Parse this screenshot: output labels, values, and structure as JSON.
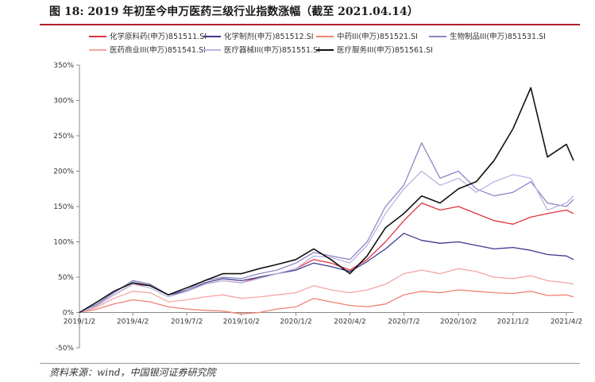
{
  "figure": {
    "title": "图 18:  2019 年初至今申万医药三级行业指数涨幅（截至 2021.04.14）",
    "source": "资料来源：wind，中国银河证券研究院"
  },
  "chart_data": {
    "type": "line",
    "title": "",
    "xlabel": "",
    "ylabel": "",
    "ylim": [
      -50,
      350
    ],
    "y_ticks": [
      "-50%",
      "0%",
      "50%",
      "100%",
      "150%",
      "200%",
      "250%",
      "300%",
      "350%"
    ],
    "x_range": [
      "2019-01-02",
      "2021-04-14"
    ],
    "x_ticks": [
      "2019/1/2",
      "2019/4/2",
      "2019/7/2",
      "2019/10/2",
      "2020/1/2",
      "2020/4/2",
      "2020/7/2",
      "2020/10/2",
      "2021/1/2",
      "2021/4/2"
    ],
    "grid": false,
    "legend_position": "top",
    "series": [
      {
        "name": "化学原料药(申万)851511.SI",
        "color": "#e0333c",
        "points": [
          [
            "2019-01-02",
            0
          ],
          [
            "2019-02-01",
            10
          ],
          [
            "2019-03-01",
            25
          ],
          [
            "2019-04-02",
            40
          ],
          [
            "2019-05-01",
            38
          ],
          [
            "2019-06-01",
            25
          ],
          [
            "2019-07-02",
            30
          ],
          [
            "2019-08-01",
            40
          ],
          [
            "2019-09-01",
            45
          ],
          [
            "2019-10-02",
            42
          ],
          [
            "2019-11-01",
            50
          ],
          [
            "2019-12-01",
            55
          ],
          [
            "2020-01-02",
            62
          ],
          [
            "2020-02-01",
            75
          ],
          [
            "2020-03-01",
            70
          ],
          [
            "2020-04-02",
            60
          ],
          [
            "2020-05-01",
            75
          ],
          [
            "2020-06-01",
            100
          ],
          [
            "2020-07-02",
            130
          ],
          [
            "2020-08-01",
            155
          ],
          [
            "2020-09-01",
            145
          ],
          [
            "2020-10-02",
            150
          ],
          [
            "2020-11-01",
            140
          ],
          [
            "2020-12-01",
            130
          ],
          [
            "2021-01-02",
            125
          ],
          [
            "2021-02-01",
            135
          ],
          [
            "2021-03-01",
            140
          ],
          [
            "2021-04-02",
            145
          ],
          [
            "2021-04-14",
            140
          ]
        ]
      },
      {
        "name": "化学制剂(申万)851512.SI",
        "color": "#3d3a8f",
        "points": [
          [
            "2019-01-02",
            0
          ],
          [
            "2019-02-01",
            12
          ],
          [
            "2019-03-01",
            28
          ],
          [
            "2019-04-02",
            45
          ],
          [
            "2019-05-01",
            40
          ],
          [
            "2019-06-01",
            25
          ],
          [
            "2019-07-02",
            30
          ],
          [
            "2019-08-01",
            42
          ],
          [
            "2019-09-01",
            48
          ],
          [
            "2019-10-02",
            45
          ],
          [
            "2019-11-01",
            50
          ],
          [
            "2019-12-01",
            55
          ],
          [
            "2020-01-02",
            60
          ],
          [
            "2020-02-01",
            70
          ],
          [
            "2020-03-01",
            65
          ],
          [
            "2020-04-02",
            58
          ],
          [
            "2020-05-01",
            72
          ],
          [
            "2020-06-01",
            90
          ],
          [
            "2020-07-02",
            112
          ],
          [
            "2020-08-01",
            102
          ],
          [
            "2020-09-01",
            98
          ],
          [
            "2020-10-02",
            100
          ],
          [
            "2020-11-01",
            95
          ],
          [
            "2020-12-01",
            90
          ],
          [
            "2021-01-02",
            92
          ],
          [
            "2021-02-01",
            88
          ],
          [
            "2021-03-01",
            82
          ],
          [
            "2021-04-02",
            80
          ],
          [
            "2021-04-14",
            75
          ]
        ]
      },
      {
        "name": "中药III(申万)851521.SI",
        "color": "#f08070",
        "points": [
          [
            "2019-01-02",
            0
          ],
          [
            "2019-02-01",
            5
          ],
          [
            "2019-03-01",
            12
          ],
          [
            "2019-04-02",
            18
          ],
          [
            "2019-05-01",
            15
          ],
          [
            "2019-06-01",
            8
          ],
          [
            "2019-07-02",
            5
          ],
          [
            "2019-08-01",
            3
          ],
          [
            "2019-09-01",
            2
          ],
          [
            "2019-10-02",
            -2
          ],
          [
            "2019-11-01",
            0
          ],
          [
            "2019-12-01",
            5
          ],
          [
            "2020-01-02",
            8
          ],
          [
            "2020-02-01",
            20
          ],
          [
            "2020-03-01",
            15
          ],
          [
            "2020-04-02",
            10
          ],
          [
            "2020-05-01",
            8
          ],
          [
            "2020-06-01",
            12
          ],
          [
            "2020-07-02",
            25
          ],
          [
            "2020-08-01",
            30
          ],
          [
            "2020-09-01",
            28
          ],
          [
            "2020-10-02",
            32
          ],
          [
            "2020-11-01",
            30
          ],
          [
            "2020-12-01",
            28
          ],
          [
            "2021-01-02",
            27
          ],
          [
            "2021-02-01",
            30
          ],
          [
            "2021-03-01",
            24
          ],
          [
            "2021-04-02",
            25
          ],
          [
            "2021-04-14",
            22
          ]
        ]
      },
      {
        "name": "生物制品III(申万)851531.SI",
        "color": "#8a87c5",
        "points": [
          [
            "2019-01-02",
            0
          ],
          [
            "2019-02-01",
            12
          ],
          [
            "2019-03-01",
            28
          ],
          [
            "2019-04-02",
            45
          ],
          [
            "2019-05-01",
            40
          ],
          [
            "2019-06-01",
            25
          ],
          [
            "2019-07-02",
            32
          ],
          [
            "2019-08-01",
            45
          ],
          [
            "2019-09-01",
            50
          ],
          [
            "2019-10-02",
            48
          ],
          [
            "2019-11-01",
            55
          ],
          [
            "2019-12-01",
            60
          ],
          [
            "2020-01-02",
            70
          ],
          [
            "2020-02-01",
            85
          ],
          [
            "2020-03-01",
            80
          ],
          [
            "2020-04-02",
            75
          ],
          [
            "2020-05-01",
            100
          ],
          [
            "2020-06-01",
            150
          ],
          [
            "2020-07-02",
            180
          ],
          [
            "2020-08-01",
            240
          ],
          [
            "2020-09-01",
            190
          ],
          [
            "2020-10-02",
            200
          ],
          [
            "2020-11-01",
            175
          ],
          [
            "2020-12-01",
            165
          ],
          [
            "2021-01-02",
            170
          ],
          [
            "2021-02-01",
            185
          ],
          [
            "2021-03-01",
            155
          ],
          [
            "2021-04-02",
            150
          ],
          [
            "2021-04-14",
            160
          ]
        ]
      },
      {
        "name": "医药商业III(申万)851541.SI",
        "color": "#f4a5a5",
        "points": [
          [
            "2019-01-02",
            0
          ],
          [
            "2019-02-01",
            8
          ],
          [
            "2019-03-01",
            20
          ],
          [
            "2019-04-02",
            30
          ],
          [
            "2019-05-01",
            28
          ],
          [
            "2019-06-01",
            15
          ],
          [
            "2019-07-02",
            18
          ],
          [
            "2019-08-01",
            22
          ],
          [
            "2019-09-01",
            25
          ],
          [
            "2019-10-02",
            20
          ],
          [
            "2019-11-01",
            22
          ],
          [
            "2019-12-01",
            25
          ],
          [
            "2020-01-02",
            28
          ],
          [
            "2020-02-01",
            38
          ],
          [
            "2020-03-01",
            32
          ],
          [
            "2020-04-02",
            28
          ],
          [
            "2020-05-01",
            32
          ],
          [
            "2020-06-01",
            40
          ],
          [
            "2020-07-02",
            55
          ],
          [
            "2020-08-01",
            60
          ],
          [
            "2020-09-01",
            55
          ],
          [
            "2020-10-02",
            62
          ],
          [
            "2020-11-01",
            58
          ],
          [
            "2020-12-01",
            50
          ],
          [
            "2021-01-02",
            48
          ],
          [
            "2021-02-01",
            52
          ],
          [
            "2021-03-01",
            45
          ],
          [
            "2021-04-02",
            42
          ],
          [
            "2021-04-14",
            40
          ]
        ]
      },
      {
        "name": "医疗器械III(申万)851551.SI",
        "color": "#b9b4e0",
        "points": [
          [
            "2019-01-02",
            0
          ],
          [
            "2019-02-01",
            10
          ],
          [
            "2019-03-01",
            25
          ],
          [
            "2019-04-02",
            40
          ],
          [
            "2019-05-01",
            35
          ],
          [
            "2019-06-01",
            22
          ],
          [
            "2019-07-02",
            30
          ],
          [
            "2019-08-01",
            40
          ],
          [
            "2019-09-01",
            45
          ],
          [
            "2019-10-02",
            42
          ],
          [
            "2019-11-01",
            48
          ],
          [
            "2019-12-01",
            55
          ],
          [
            "2020-01-02",
            62
          ],
          [
            "2020-02-01",
            80
          ],
          [
            "2020-03-01",
            78
          ],
          [
            "2020-04-02",
            70
          ],
          [
            "2020-05-01",
            95
          ],
          [
            "2020-06-01",
            140
          ],
          [
            "2020-07-02",
            175
          ],
          [
            "2020-08-01",
            200
          ],
          [
            "2020-09-01",
            180
          ],
          [
            "2020-10-02",
            190
          ],
          [
            "2020-11-01",
            170
          ],
          [
            "2020-12-01",
            185
          ],
          [
            "2021-01-02",
            195
          ],
          [
            "2021-02-01",
            190
          ],
          [
            "2021-03-01",
            145
          ],
          [
            "2021-04-02",
            155
          ],
          [
            "2021-04-14",
            165
          ]
        ]
      },
      {
        "name": "医疗服务III(申万)851561.SI",
        "color": "#111111",
        "points": [
          [
            "2019-01-02",
            0
          ],
          [
            "2019-02-01",
            15
          ],
          [
            "2019-03-01",
            30
          ],
          [
            "2019-04-02",
            42
          ],
          [
            "2019-05-01",
            38
          ],
          [
            "2019-06-01",
            25
          ],
          [
            "2019-07-02",
            35
          ],
          [
            "2019-08-01",
            45
          ],
          [
            "2019-09-01",
            55
          ],
          [
            "2019-10-02",
            55
          ],
          [
            "2019-11-01",
            62
          ],
          [
            "2019-12-01",
            68
          ],
          [
            "2020-01-02",
            75
          ],
          [
            "2020-02-01",
            90
          ],
          [
            "2020-03-01",
            75
          ],
          [
            "2020-04-02",
            55
          ],
          [
            "2020-05-01",
            80
          ],
          [
            "2020-06-01",
            120
          ],
          [
            "2020-07-02",
            140
          ],
          [
            "2020-08-01",
            165
          ],
          [
            "2020-09-01",
            155
          ],
          [
            "2020-10-02",
            175
          ],
          [
            "2020-11-01",
            185
          ],
          [
            "2020-12-01",
            215
          ],
          [
            "2021-01-02",
            260
          ],
          [
            "2021-02-01",
            318
          ],
          [
            "2021-03-01",
            220
          ],
          [
            "2021-04-02",
            238
          ],
          [
            "2021-04-14",
            215
          ]
        ]
      }
    ]
  }
}
